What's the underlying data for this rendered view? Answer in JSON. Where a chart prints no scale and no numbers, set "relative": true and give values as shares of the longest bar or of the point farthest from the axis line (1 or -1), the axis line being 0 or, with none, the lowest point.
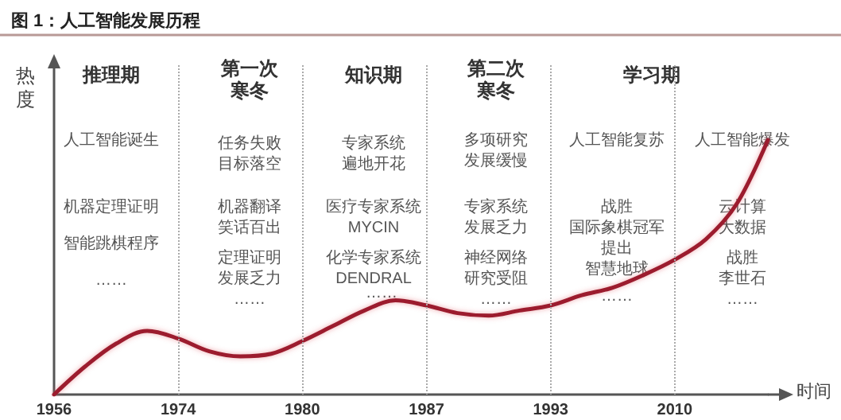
{
  "chart_data": {
    "type": "line",
    "title": "图 1：人工智能发展历程",
    "xlabel": "时间",
    "ylabel": "热度",
    "categories": [
      "1956",
      null,
      null,
      null,
      "1974",
      null,
      null,
      null,
      "1980",
      null,
      null,
      null,
      "1987",
      null,
      null,
      null,
      "1993",
      null,
      null,
      null,
      "2010",
      null,
      null,
      null
    ],
    "series": [
      {
        "color": "#9c1c2e",
        "values": [
          0,
          0.11,
          0.2,
          0.25,
          0.22,
          0.17,
          0.15,
          0.16,
          0.21,
          0.27,
          0.33,
          0.37,
          0.35,
          0.32,
          0.31,
          0.33,
          0.35,
          0.39,
          0.42,
          0.47,
          0.53,
          0.61,
          0.75,
          1
        ]
      }
    ],
    "relative": true,
    "grid": false,
    "marker": "none",
    "line_style": "solid",
    "ref_lines": [
      {
        "axis": "x",
        "value": "1974",
        "color": "#aaaaaa",
        "line_style": "dotted"
      },
      {
        "axis": "x",
        "value": "1980",
        "color": "#aaaaaa",
        "line_style": "dotted"
      },
      {
        "axis": "x",
        "value": "1987",
        "color": "#aaaaaa",
        "line_style": "dotted"
      },
      {
        "axis": "x",
        "value": "1993",
        "color": "#aaaaaa",
        "line_style": "dotted"
      },
      {
        "axis": "x",
        "value": "2010",
        "color": "#aaaaaa",
        "line_style": "dotted"
      }
    ],
    "annotations": [
      "推理期",
      "人工智能诞生",
      "机器定理证明",
      "智能跳棋程序",
      "……",
      "第一次寒冬",
      "任务失败目标落空",
      "机器翻译笑话百出",
      "定理证明发展乏力",
      "……",
      "知识期",
      "专家系统遍地开花",
      "医疗专家系统MYCIN",
      "化学专家系统DENDRAL",
      "……",
      "第二次寒冬",
      "多项研究发展缓慢",
      "专家系统发展乏力",
      "神经网络研究受阻",
      "……",
      "学习期",
      "人工智能复苏",
      "战胜国际象棋冠军",
      "提出智慧地球",
      "……",
      "人工智能爆发",
      "云计算大数据",
      "战胜李世石",
      "……"
    ]
  }
}
